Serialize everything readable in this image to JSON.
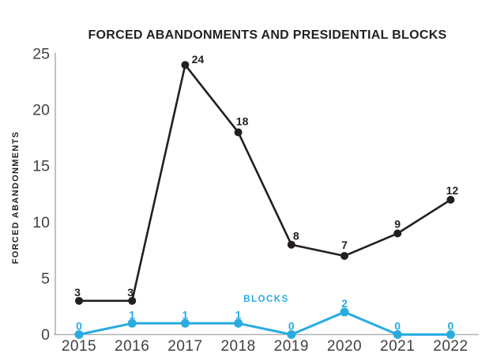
{
  "chart_data": {
    "type": "line",
    "title": "FORCED ABANDONMENTS AND PRESIDENTIAL BLOCKS",
    "ylabel": "FORCED ABANDONMENTS",
    "xlabel": "",
    "categories": [
      "2015",
      "2016",
      "2017",
      "2018",
      "2019",
      "2020",
      "2021",
      "2022"
    ],
    "series": [
      {
        "name": "FORCED ABANDONMENTS",
        "color": "#231f20",
        "values": [
          3,
          3,
          24,
          18,
          8,
          7,
          9,
          12
        ]
      },
      {
        "name": "BLOCKS",
        "color": "#29abe2",
        "values": [
          0,
          1,
          1,
          1,
          0,
          2,
          0,
          0
        ]
      }
    ],
    "inline_legend_label": "BLOCKS",
    "ylim": [
      0,
      25
    ],
    "yticks": [
      0,
      5,
      10,
      15,
      20,
      25
    ],
    "grid": false,
    "legend_position": "inline-above-blocks-series",
    "data_labels": true
  },
  "colors": {
    "abandonments_line": "#231f20",
    "blocks_line": "#29abe2",
    "axis_line": "#b0b2b5",
    "tick_text": "#414042",
    "background": "#ffffff"
  }
}
